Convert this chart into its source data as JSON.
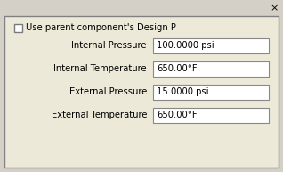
{
  "outer_bg": "#d4d0c8",
  "panel_bg": "#ece9d8",
  "white": "#ffffff",
  "text_color": "#000000",
  "border_color": "#808080",
  "checkbox_label": "Use parent component's Design P",
  "fields": [
    {
      "label": "Internal Pressure",
      "value": "100.0000 psi"
    },
    {
      "label": "Internal Temperature",
      "value": "650.00°F"
    },
    {
      "label": "External Pressure",
      "value": "15.0000 psi"
    },
    {
      "label": "External Temperature",
      "value": "650.00°F"
    }
  ],
  "close_x": "×",
  "figsize": [
    3.18,
    1.93
  ],
  "dpi": 100,
  "label_fontsize": 7.2,
  "value_fontsize": 7.2,
  "checkbox_fontsize": 7.2
}
